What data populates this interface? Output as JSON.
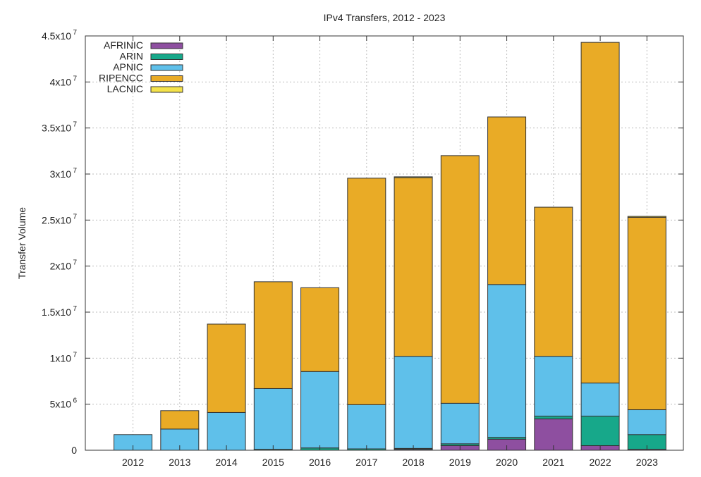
{
  "chart_data": {
    "type": "bar",
    "stacked": true,
    "title": "IPv4 Transfers, 2012 - 2023",
    "xlabel": "",
    "ylabel": "Transfer Volume",
    "categories": [
      "2012",
      "2013",
      "2014",
      "2015",
      "2016",
      "2017",
      "2018",
      "2019",
      "2020",
      "2021",
      "2022",
      "2023"
    ],
    "ylim": [
      0,
      45000000
    ],
    "yticks": [
      {
        "value": 0,
        "mantissa": "0",
        "exp": ""
      },
      {
        "value": 5000000,
        "mantissa": "5x10",
        "exp": "6"
      },
      {
        "value": 10000000,
        "mantissa": "1x10",
        "exp": "7"
      },
      {
        "value": 15000000,
        "mantissa": "1.5x10",
        "exp": "7"
      },
      {
        "value": 20000000,
        "mantissa": "2x10",
        "exp": "7"
      },
      {
        "value": 25000000,
        "mantissa": "2.5x10",
        "exp": "7"
      },
      {
        "value": 30000000,
        "mantissa": "3x10",
        "exp": "7"
      },
      {
        "value": 35000000,
        "mantissa": "3.5x10",
        "exp": "7"
      },
      {
        "value": 40000000,
        "mantissa": "4x10",
        "exp": "7"
      },
      {
        "value": 45000000,
        "mantissa": "4.5x10",
        "exp": "7"
      }
    ],
    "grid": true,
    "legend_position": "top-left",
    "series": [
      {
        "name": "AFRINIC",
        "color": "#8e4fa0",
        "values": [
          0,
          0,
          0,
          0,
          0,
          0,
          100000,
          500000,
          1200000,
          3400000,
          500000,
          100000
        ]
      },
      {
        "name": "ARIN",
        "color": "#17a88a",
        "values": [
          0,
          0,
          0,
          100000,
          250000,
          150000,
          100000,
          200000,
          200000,
          300000,
          3200000,
          1600000
        ]
      },
      {
        "name": "APNIC",
        "color": "#5fc0ea",
        "values": [
          1700000,
          2300000,
          4100000,
          6600000,
          8300000,
          4800000,
          10000000,
          4400000,
          16600000,
          6500000,
          3600000,
          2700000
        ]
      },
      {
        "name": "RIPENCC",
        "color": "#e9ab26",
        "values": [
          0,
          2000000,
          9600000,
          11600000,
          9100000,
          24600000,
          19400000,
          26900000,
          18200000,
          16200000,
          37000000,
          20900000
        ]
      },
      {
        "name": "LACNIC",
        "color": "#f4e24a",
        "values": [
          0,
          0,
          0,
          0,
          0,
          0,
          100000,
          0,
          0,
          0,
          0,
          100000
        ]
      }
    ]
  }
}
